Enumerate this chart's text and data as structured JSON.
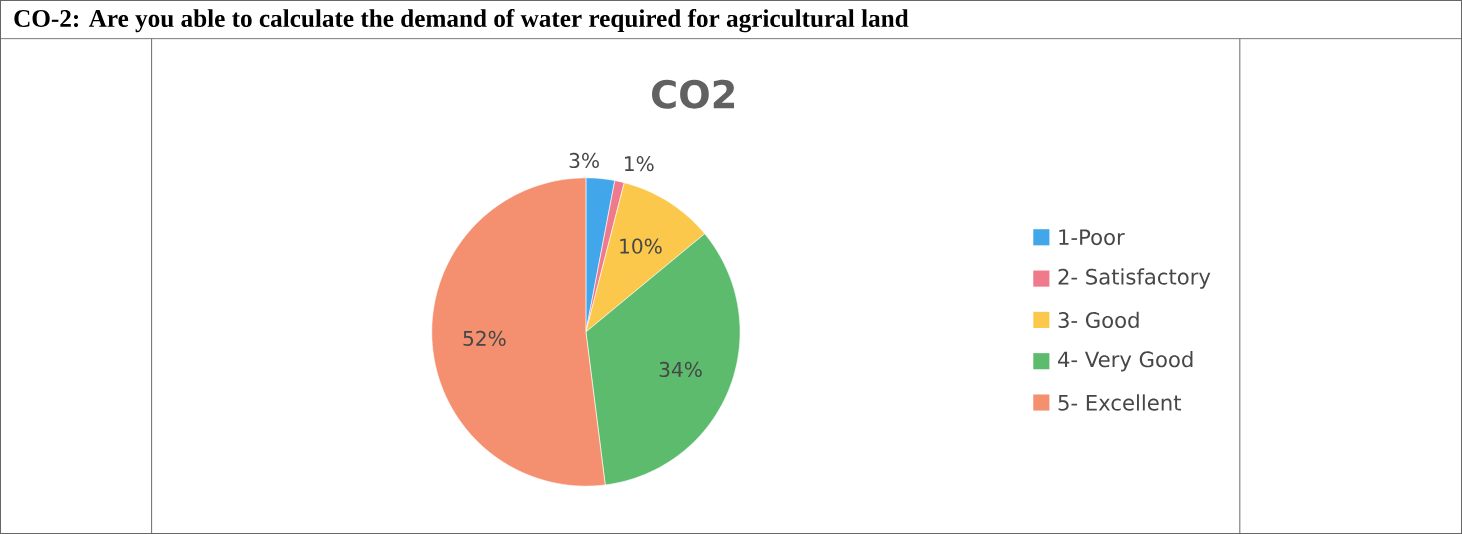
{
  "chart_data": {
    "type": "pie",
    "title": "CO2",
    "annotations": [
      "CO-2: Are you able to calculate the demand of water required for agricultural land"
    ],
    "categories": [
      "1-Poor",
      "2- Satisfactory",
      "3- Good",
      "4- Very Good",
      "5- Excellent"
    ],
    "values": [
      3,
      1,
      10,
      34,
      52
    ],
    "value_labels": [
      "3%",
      "1%",
      "10%",
      "34%",
      "52%"
    ],
    "colors": [
      "#41a6ea",
      "#ee7a8c",
      "#fbc84c",
      "#5cbb6c",
      "#f4906f"
    ],
    "legend": "right"
  }
}
